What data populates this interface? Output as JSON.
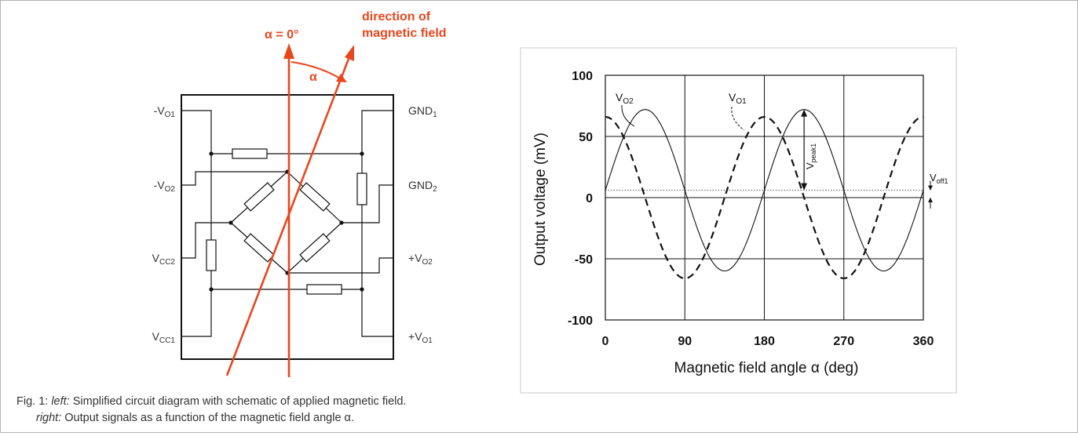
{
  "circuit": {
    "field_zero_label": "α = 0°",
    "field_direction_label": [
      "direction of",
      "magnetic field"
    ],
    "angle_label": "α",
    "pins_left": [
      {
        "sign": "-",
        "main": "V",
        "sub": "O1"
      },
      {
        "sign": "-",
        "main": "V",
        "sub": "O2"
      },
      {
        "sign": "",
        "main": "V",
        "sub": "CC2"
      },
      {
        "sign": "",
        "main": "V",
        "sub": "CC1"
      }
    ],
    "pins_right": [
      {
        "sign": "",
        "main": "GND",
        "sub": "1"
      },
      {
        "sign": "",
        "main": "GND",
        "sub": "2"
      },
      {
        "sign": "+",
        "main": "V",
        "sub": "O2"
      },
      {
        "sign": "+",
        "main": "V",
        "sub": "O1"
      }
    ],
    "field_color": "#e8471d"
  },
  "chart_data": {
    "type": "line",
    "xlabel": "Magnetic field angle α (deg)",
    "ylabel": "Output voltage (mV)",
    "xlim": [
      0,
      360
    ],
    "ylim": [
      -100,
      100
    ],
    "xticks": [
      0,
      90,
      180,
      270,
      360
    ],
    "yticks": [
      100,
      50,
      0,
      -50,
      -100
    ],
    "grid": true,
    "series": [
      {
        "name": "V_O1",
        "style": "dashed",
        "offset": 0,
        "amplitude": 66,
        "formula": "offset + amplitude*cos(2α)"
      },
      {
        "name": "V_O2",
        "style": "solid",
        "offset": 6,
        "amplitude": 66,
        "formula": "offset + amplitude*sin(2α)"
      }
    ],
    "offset_line": {
      "value": 6,
      "style": "dotted"
    },
    "annotations": {
      "vo2": {
        "main": "V",
        "sub": "O2"
      },
      "vo1": {
        "main": "V",
        "sub": "O1"
      },
      "vpeak": {
        "main": "V",
        "sub": "peak1"
      },
      "voff": {
        "main": "V",
        "sub": "off1"
      }
    }
  },
  "caption": {
    "prefix": "Fig. 1: ",
    "left_tag": "left:",
    "left_text": " Simplified circuit diagram with schematic of applied magnetic field.",
    "right_tag": "right:",
    "right_text": " Output signals as a function of the magnetic field angle α."
  }
}
